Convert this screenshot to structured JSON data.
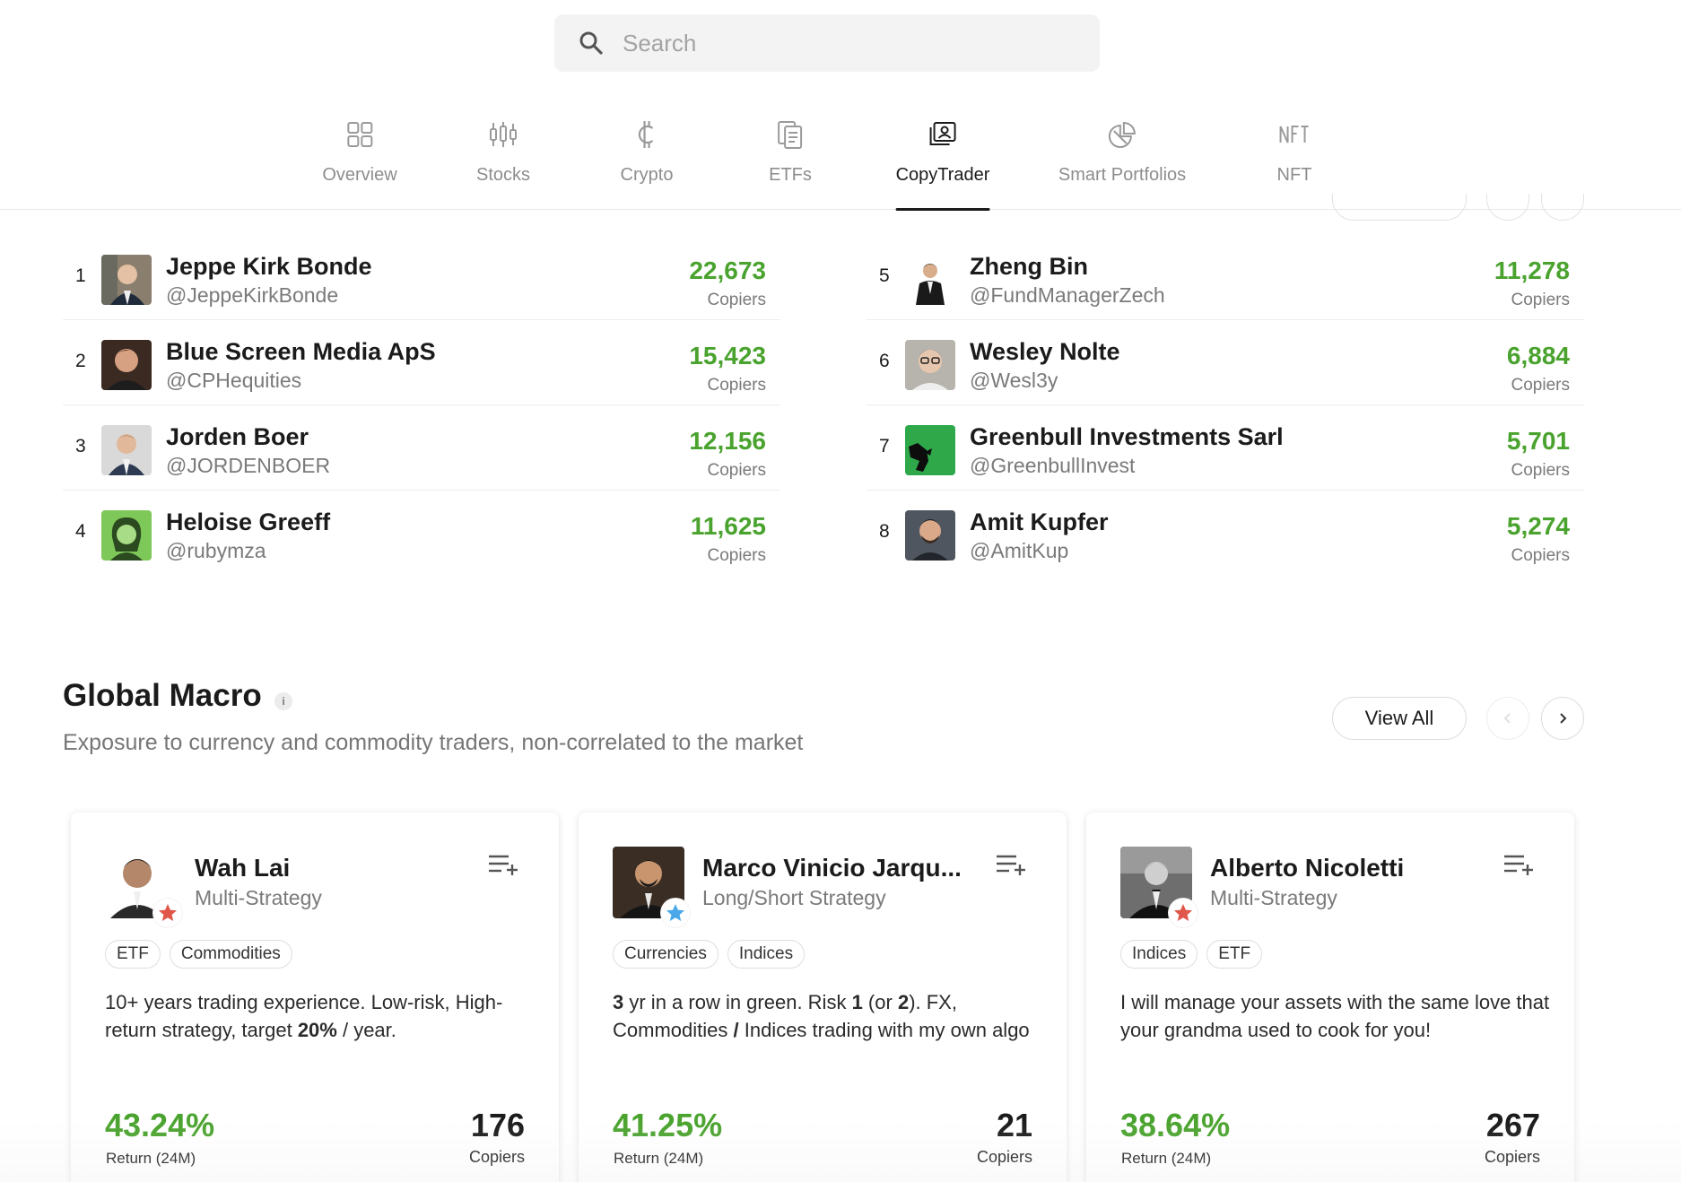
{
  "search": {
    "placeholder": "Search"
  },
  "tabs": [
    {
      "label": "Overview",
      "icon": "grid-icon"
    },
    {
      "label": "Stocks",
      "icon": "candlestick-icon"
    },
    {
      "label": "Crypto",
      "icon": "crypto-coin-icon"
    },
    {
      "label": "ETFs",
      "icon": "documents-icon"
    },
    {
      "label": "CopyTrader",
      "icon": "copytrader-icon",
      "active": true
    },
    {
      "label": "Smart Portfolios",
      "icon": "pie-chart-icon"
    },
    {
      "label": "NFT",
      "icon": "nft-icon"
    }
  ],
  "top_list": [
    {
      "rank": "1",
      "name": "Jeppe Kirk Bonde",
      "handle": "@JeppeKirkBonde",
      "copiers": "22,673",
      "copiers_label": "Copiers"
    },
    {
      "rank": "2",
      "name": "Blue Screen Media ApS",
      "handle": "@CPHequities",
      "copiers": "15,423",
      "copiers_label": "Copiers"
    },
    {
      "rank": "3",
      "name": "Jorden Boer",
      "handle": "@JORDENBOER",
      "copiers": "12,156",
      "copiers_label": "Copiers"
    },
    {
      "rank": "4",
      "name": "Heloise Greeff",
      "handle": "@rubymza",
      "copiers": "11,625",
      "copiers_label": "Copiers"
    },
    {
      "rank": "5",
      "name": "Zheng Bin",
      "handle": "@FundManagerZech",
      "copiers": "11,278",
      "copiers_label": "Copiers"
    },
    {
      "rank": "6",
      "name": "Wesley Nolte",
      "handle": "@Wesl3y",
      "copiers": "6,884",
      "copiers_label": "Copiers"
    },
    {
      "rank": "7",
      "name": "Greenbull Investments Sarl",
      "handle": "@GreenbullInvest",
      "copiers": "5,701",
      "copiers_label": "Copiers"
    },
    {
      "rank": "8",
      "name": "Amit Kupfer",
      "handle": "@AmitKup",
      "copiers": "5,274",
      "copiers_label": "Copiers"
    }
  ],
  "section": {
    "title": "Global Macro",
    "info": "i",
    "subtitle": "Exposure to currency and commodity traders, non-correlated to the market",
    "view_all": "View All"
  },
  "cards": [
    {
      "name": "Wah Lai",
      "strategy": "Multi-Strategy",
      "badge_color": "#e0564a",
      "tags": [
        "ETF",
        "Commodities"
      ],
      "desc_parts": [
        [
          "10+",
          false
        ],
        [
          " years trading experience. Low-risk, High-return strategy, target ",
          false
        ],
        [
          "20%",
          true
        ],
        [
          " / year.",
          false
        ]
      ],
      "return": "43.24%",
      "return_label": "Return (24M)",
      "copiers": "176",
      "copiers_label": "Copiers"
    },
    {
      "name": "Marco Vinicio Jarqu...",
      "strategy": "Long/Short Strategy",
      "badge_color": "#4aa8e8",
      "tags": [
        "Currencies",
        "Indices"
      ],
      "desc_parts": [
        [
          "3",
          true
        ],
        [
          " yr in a row in green. Risk ",
          false
        ],
        [
          "1",
          true
        ],
        [
          " (or ",
          false
        ],
        [
          "2",
          true
        ],
        [
          "). FX, Commodities ",
          false
        ],
        [
          "/",
          true
        ],
        [
          " Indices trading with my own algo",
          false
        ]
      ],
      "return": "41.25%",
      "return_label": "Return (24M)",
      "copiers": "21",
      "copiers_label": "Copiers"
    },
    {
      "name": "Alberto Nicoletti",
      "strategy": "Multi-Strategy",
      "badge_color": "#e0564a",
      "tags": [
        "Indices",
        "ETF"
      ],
      "desc_parts": [
        [
          "I will manage your assets with the same love that your grandma used to cook for you!",
          false
        ]
      ],
      "return": "38.64%",
      "return_label": "Return (24M)",
      "copiers": "267",
      "copiers_label": "Copiers"
    }
  ]
}
